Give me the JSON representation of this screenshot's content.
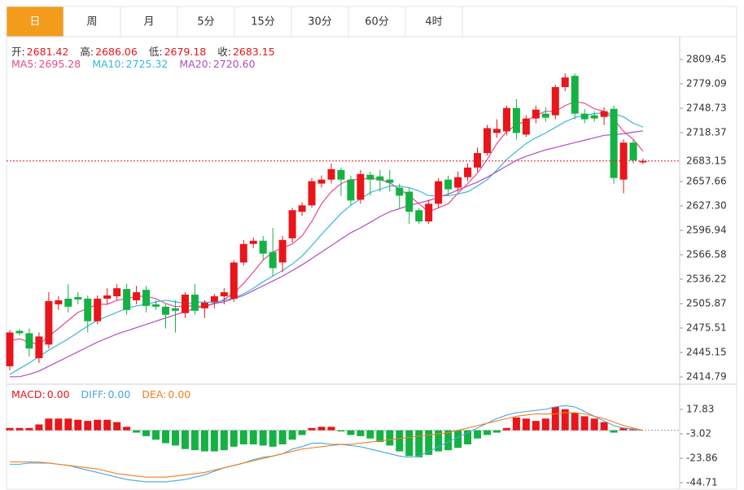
{
  "tabs": [
    "日",
    "周",
    "月",
    "5分",
    "15分",
    "30分",
    "60分",
    "4时"
  ],
  "selected_tab": 0,
  "chart_data": [
    {
      "type": "candlestick",
      "up_color": "#e8151b",
      "down_color": "#14b143",
      "ohlc_labels": [
        "开:",
        "高:",
        "低:",
        "收:"
      ],
      "open": [
        2428,
        2472,
        2469,
        2438,
        2455,
        2505,
        2512,
        2514,
        2512,
        2484,
        2512,
        2515,
        2524,
        2510,
        2523,
        2505,
        2502,
        2500,
        2494,
        2517,
        2500,
        2508,
        2515,
        2512,
        2557,
        2580,
        2584,
        2570,
        2557,
        2587,
        2620,
        2628,
        2655,
        2660,
        2672,
        2660,
        2635,
        2666,
        2664,
        2660,
        2650,
        2645,
        2622,
        2608,
        2630,
        2660,
        2650,
        2663,
        2675,
        2693,
        2718,
        2720,
        2749,
        2716,
        2736,
        2742,
        2740,
        2775,
        2789,
        2742,
        2740,
        2738,
        2748,
        2660,
        2706,
        2681.42
      ],
      "close": [
        2470,
        2469,
        2450,
        2465,
        2509,
        2510,
        2502,
        2511,
        2484,
        2512,
        2516,
        2525,
        2498,
        2520,
        2503,
        2502,
        2492,
        2497,
        2517,
        2497,
        2507,
        2515,
        2520,
        2557,
        2580,
        2584,
        2568,
        2550,
        2585,
        2622,
        2628,
        2658,
        2660,
        2673,
        2660,
        2634,
        2667,
        2660,
        2659,
        2656,
        2640,
        2620,
        2608,
        2630,
        2658,
        2648,
        2663,
        2675,
        2693,
        2724,
        2723,
        2749,
        2718,
        2736,
        2747,
        2737,
        2775,
        2787,
        2742,
        2735,
        2736,
        2745,
        2662,
        2706,
        2684,
        2683.15
      ],
      "high": [
        2473,
        2474,
        2475,
        2470,
        2520,
        2515,
        2530,
        2520,
        2516,
        2516,
        2525,
        2530,
        2530,
        2528,
        2528,
        2510,
        2505,
        2510,
        2520,
        2530,
        2510,
        2518,
        2525,
        2560,
        2585,
        2588,
        2590,
        2600,
        2590,
        2625,
        2632,
        2662,
        2665,
        2680,
        2675,
        2665,
        2672,
        2670,
        2672,
        2672,
        2655,
        2650,
        2625,
        2635,
        2662,
        2665,
        2670,
        2680,
        2700,
        2728,
        2735,
        2752,
        2760,
        2740,
        2752,
        2750,
        2778,
        2792,
        2792,
        2748,
        2745,
        2750,
        2752,
        2710,
        2710,
        2686.06
      ],
      "low": [
        2423,
        2466,
        2440,
        2432,
        2450,
        2498,
        2495,
        2505,
        2470,
        2480,
        2505,
        2510,
        2492,
        2505,
        2495,
        2498,
        2475,
        2470,
        2488,
        2492,
        2488,
        2500,
        2505,
        2508,
        2553,
        2575,
        2560,
        2540,
        2545,
        2582,
        2615,
        2625,
        2650,
        2655,
        2640,
        2628,
        2630,
        2640,
        2645,
        2645,
        2625,
        2605,
        2605,
        2605,
        2625,
        2640,
        2645,
        2658,
        2670,
        2690,
        2712,
        2715,
        2710,
        2713,
        2730,
        2732,
        2735,
        2770,
        2735,
        2730,
        2732,
        2728,
        2655,
        2643,
        2680,
        2679.18
      ],
      "ma": [
        {
          "name": "MA5:",
          "color": "#e84a8a",
          "value_label": "2695.28",
          "values": [
            2460,
            2462,
            2458,
            2455,
            2465,
            2475,
            2485,
            2495,
            2500,
            2505,
            2505,
            2510,
            2512,
            2515,
            2515,
            2512,
            2506,
            2502,
            2503,
            2503,
            2502,
            2506,
            2511,
            2519,
            2531,
            2545,
            2560,
            2570,
            2575,
            2580,
            2590,
            2608,
            2630,
            2645,
            2655,
            2660,
            2660,
            2662,
            2660,
            2656,
            2648,
            2640,
            2630,
            2620,
            2625,
            2630,
            2643,
            2655,
            2668,
            2685,
            2705,
            2720,
            2728,
            2733,
            2740,
            2745,
            2745,
            2752,
            2757,
            2755,
            2748,
            2745,
            2735,
            2720,
            2710,
            2695.28
          ]
        },
        {
          "name": "MA10:",
          "color": "#38b6d8",
          "value_label": "2725.32",
          "values": [
            2418,
            2425,
            2432,
            2440,
            2448,
            2455,
            2462,
            2470,
            2478,
            2485,
            2490,
            2495,
            2500,
            2503,
            2505,
            2508,
            2510,
            2508,
            2506,
            2507,
            2508,
            2507,
            2510,
            2513,
            2518,
            2525,
            2533,
            2540,
            2547,
            2555,
            2565,
            2578,
            2592,
            2605,
            2618,
            2628,
            2636,
            2644,
            2648,
            2652,
            2652,
            2650,
            2646,
            2640,
            2640,
            2640,
            2642,
            2645,
            2652,
            2660,
            2672,
            2685,
            2695,
            2705,
            2712,
            2718,
            2725,
            2732,
            2737,
            2740,
            2742,
            2743,
            2742,
            2738,
            2730,
            2725.32
          ]
        },
        {
          "name": "MA20:",
          "color": "#b04cc4",
          "value_label": "2720.60",
          "values": [
            2415,
            2415,
            2418,
            2422,
            2428,
            2434,
            2440,
            2446,
            2452,
            2458,
            2463,
            2468,
            2472,
            2476,
            2480,
            2484,
            2488,
            2492,
            2496,
            2500,
            2503,
            2506,
            2508,
            2512,
            2516,
            2522,
            2528,
            2534,
            2540,
            2547,
            2554,
            2562,
            2570,
            2578,
            2586,
            2594,
            2600,
            2607,
            2614,
            2620,
            2624,
            2628,
            2631,
            2634,
            2638,
            2642,
            2647,
            2652,
            2657,
            2663,
            2670,
            2677,
            2684,
            2689,
            2693,
            2697,
            2700,
            2703,
            2706,
            2709,
            2712,
            2715,
            2716,
            2717,
            2719,
            2720.6
          ]
        }
      ],
      "ylim": [
        2405.7,
        2832.7
      ],
      "yticks": [
        2809.45,
        2779.09,
        2748.73,
        2718.37,
        2657.66,
        {
          "value": 2627.3,
          "label": "2627.30"
        },
        2596.94,
        2566.58,
        2536.22,
        2505.87,
        2475.51,
        2445.15,
        2414.79
      ],
      "last_price_line": true,
      "last_price_color": "#e8151b"
    },
    {
      "type": "macd",
      "histogram": {
        "name": "MACD:",
        "value_label": "0.00",
        "up_color": "#e8151b",
        "down_color": "#14b143",
        "values": [
          2,
          2,
          2,
          5,
          10,
          10,
          10,
          9,
          8,
          9,
          9,
          7,
          3,
          -2,
          -5,
          -8,
          -11,
          -13,
          -16,
          -17,
          -18,
          -18,
          -17,
          -14,
          -12,
          -12,
          -13,
          -14,
          -12,
          -8,
          -4,
          2,
          3,
          3,
          -1,
          -4,
          -5,
          -7,
          -10,
          -13,
          -18,
          -22,
          -23,
          -21,
          -18,
          -17,
          -15,
          -12,
          -7,
          -4,
          -2,
          2,
          11,
          10,
          8,
          10,
          20,
          18,
          15,
          12,
          10,
          7,
          -2,
          2,
          1,
          0
        ]
      },
      "series": [
        {
          "name": "DIFF:",
          "color": "#4aa5e0",
          "value_label": "0.00",
          "values": [
            -29,
            -29,
            -28,
            -28,
            -28,
            -29,
            -30,
            -32,
            -34,
            -36,
            -38,
            -40,
            -42,
            -43,
            -44,
            -44,
            -44,
            -43,
            -42,
            -40,
            -38,
            -35,
            -32,
            -30,
            -28,
            -25,
            -23,
            -22,
            -20,
            -16,
            -14,
            -11,
            -11,
            -12,
            -12,
            -13,
            -14,
            -16,
            -18,
            -20,
            -22,
            -23,
            -22,
            -18,
            -14,
            -10,
            -6,
            -2,
            2,
            6,
            10,
            13,
            15,
            16,
            17,
            18,
            20,
            21,
            20,
            16,
            12,
            8,
            4,
            2,
            1,
            0
          ]
        },
        {
          "name": "DEA:",
          "color": "#f07f1c",
          "value_label": "0.00",
          "values": [
            -27,
            -27,
            -27,
            -27,
            -28,
            -29,
            -30,
            -31,
            -32,
            -33,
            -35,
            -37,
            -38,
            -39,
            -40,
            -40,
            -40,
            -39,
            -38,
            -37,
            -36,
            -34,
            -32,
            -30,
            -28,
            -26,
            -24,
            -22,
            -20,
            -18,
            -16,
            -15,
            -14,
            -13,
            -12,
            -12,
            -11,
            -10,
            -9,
            -8,
            -7,
            -6,
            -5,
            -4,
            -3,
            -2,
            0,
            2,
            4,
            6,
            8,
            10,
            12,
            13,
            14,
            14,
            14,
            15,
            15,
            14,
            12,
            10,
            7,
            4,
            2,
            0
          ]
        }
      ],
      "ylim": [
        -50.97,
        37.29
      ],
      "yticks": [
        17.83,
        -3.02,
        -23.86,
        -44.71
      ]
    }
  ]
}
